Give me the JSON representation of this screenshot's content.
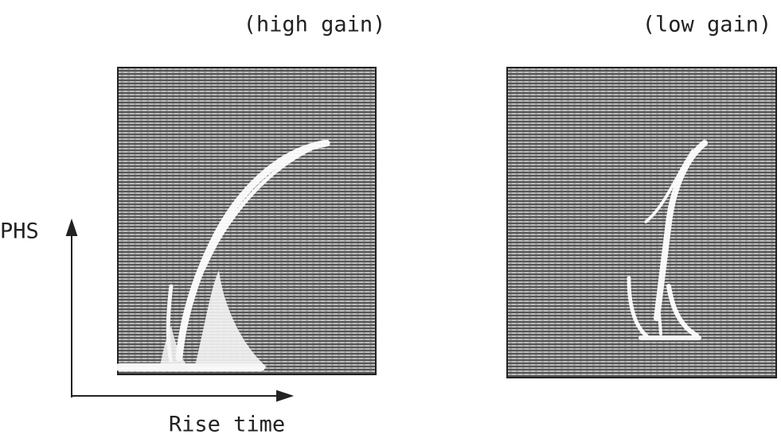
{
  "panels": [
    {
      "title": "(high gain)"
    },
    {
      "title": "(low gain)"
    }
  ],
  "axes": {
    "y_label": "PHS",
    "x_label": "Rise time"
  }
}
